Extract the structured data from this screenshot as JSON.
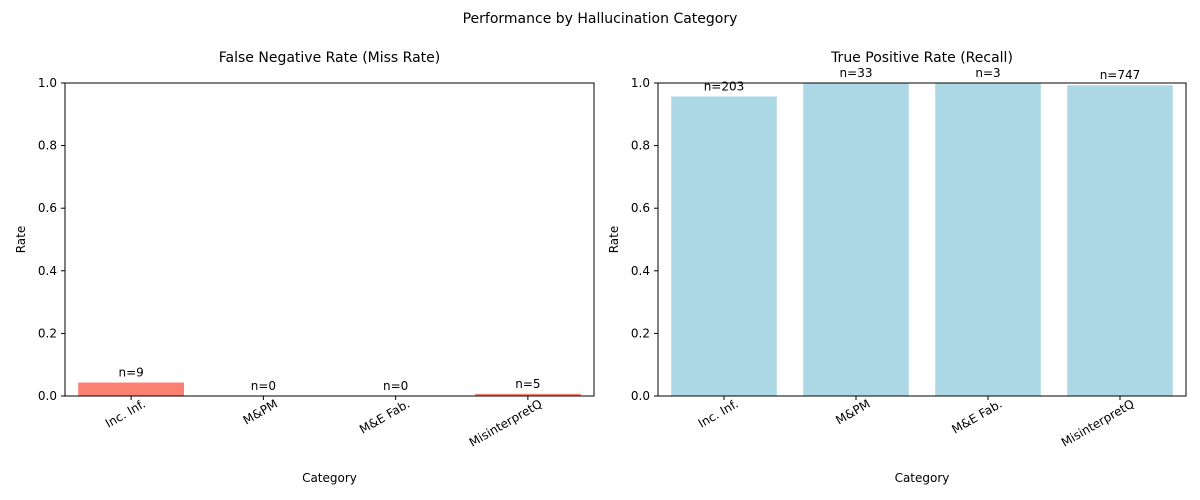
{
  "figure_title": "Performance by Hallucination Category",
  "chart_data": [
    {
      "type": "bar",
      "title": "False Negative Rate (Miss Rate)",
      "xlabel": "Category",
      "ylabel": "Rate",
      "categories": [
        "Inc. Inf.",
        "M&PM",
        "M&E Fab.",
        "MisinterpretQ"
      ],
      "values": [
        0.043,
        0.0,
        0.0,
        0.007
      ],
      "bar_labels": [
        "n=9",
        "n=0",
        "n=0",
        "n=5"
      ],
      "ylim": [
        0,
        1
      ],
      "yticks": [
        "0.0",
        "0.2",
        "0.4",
        "0.6",
        "0.8",
        "1.0"
      ],
      "color": "#fa8072",
      "grid": false
    },
    {
      "type": "bar",
      "title": "True Positive Rate (Recall)",
      "xlabel": "Category",
      "ylabel": "Rate",
      "categories": [
        "Inc. Inf.",
        "M&PM",
        "M&E Fab.",
        "MisinterpretQ"
      ],
      "values": [
        0.957,
        1.0,
        1.0,
        0.993
      ],
      "bar_labels": [
        "n=203",
        "n=33",
        "n=3",
        "n=747"
      ],
      "ylim": [
        0,
        1
      ],
      "yticks": [
        "0.0",
        "0.2",
        "0.4",
        "0.6",
        "0.8",
        "1.0"
      ],
      "color": "#add8e6",
      "grid": false
    }
  ]
}
